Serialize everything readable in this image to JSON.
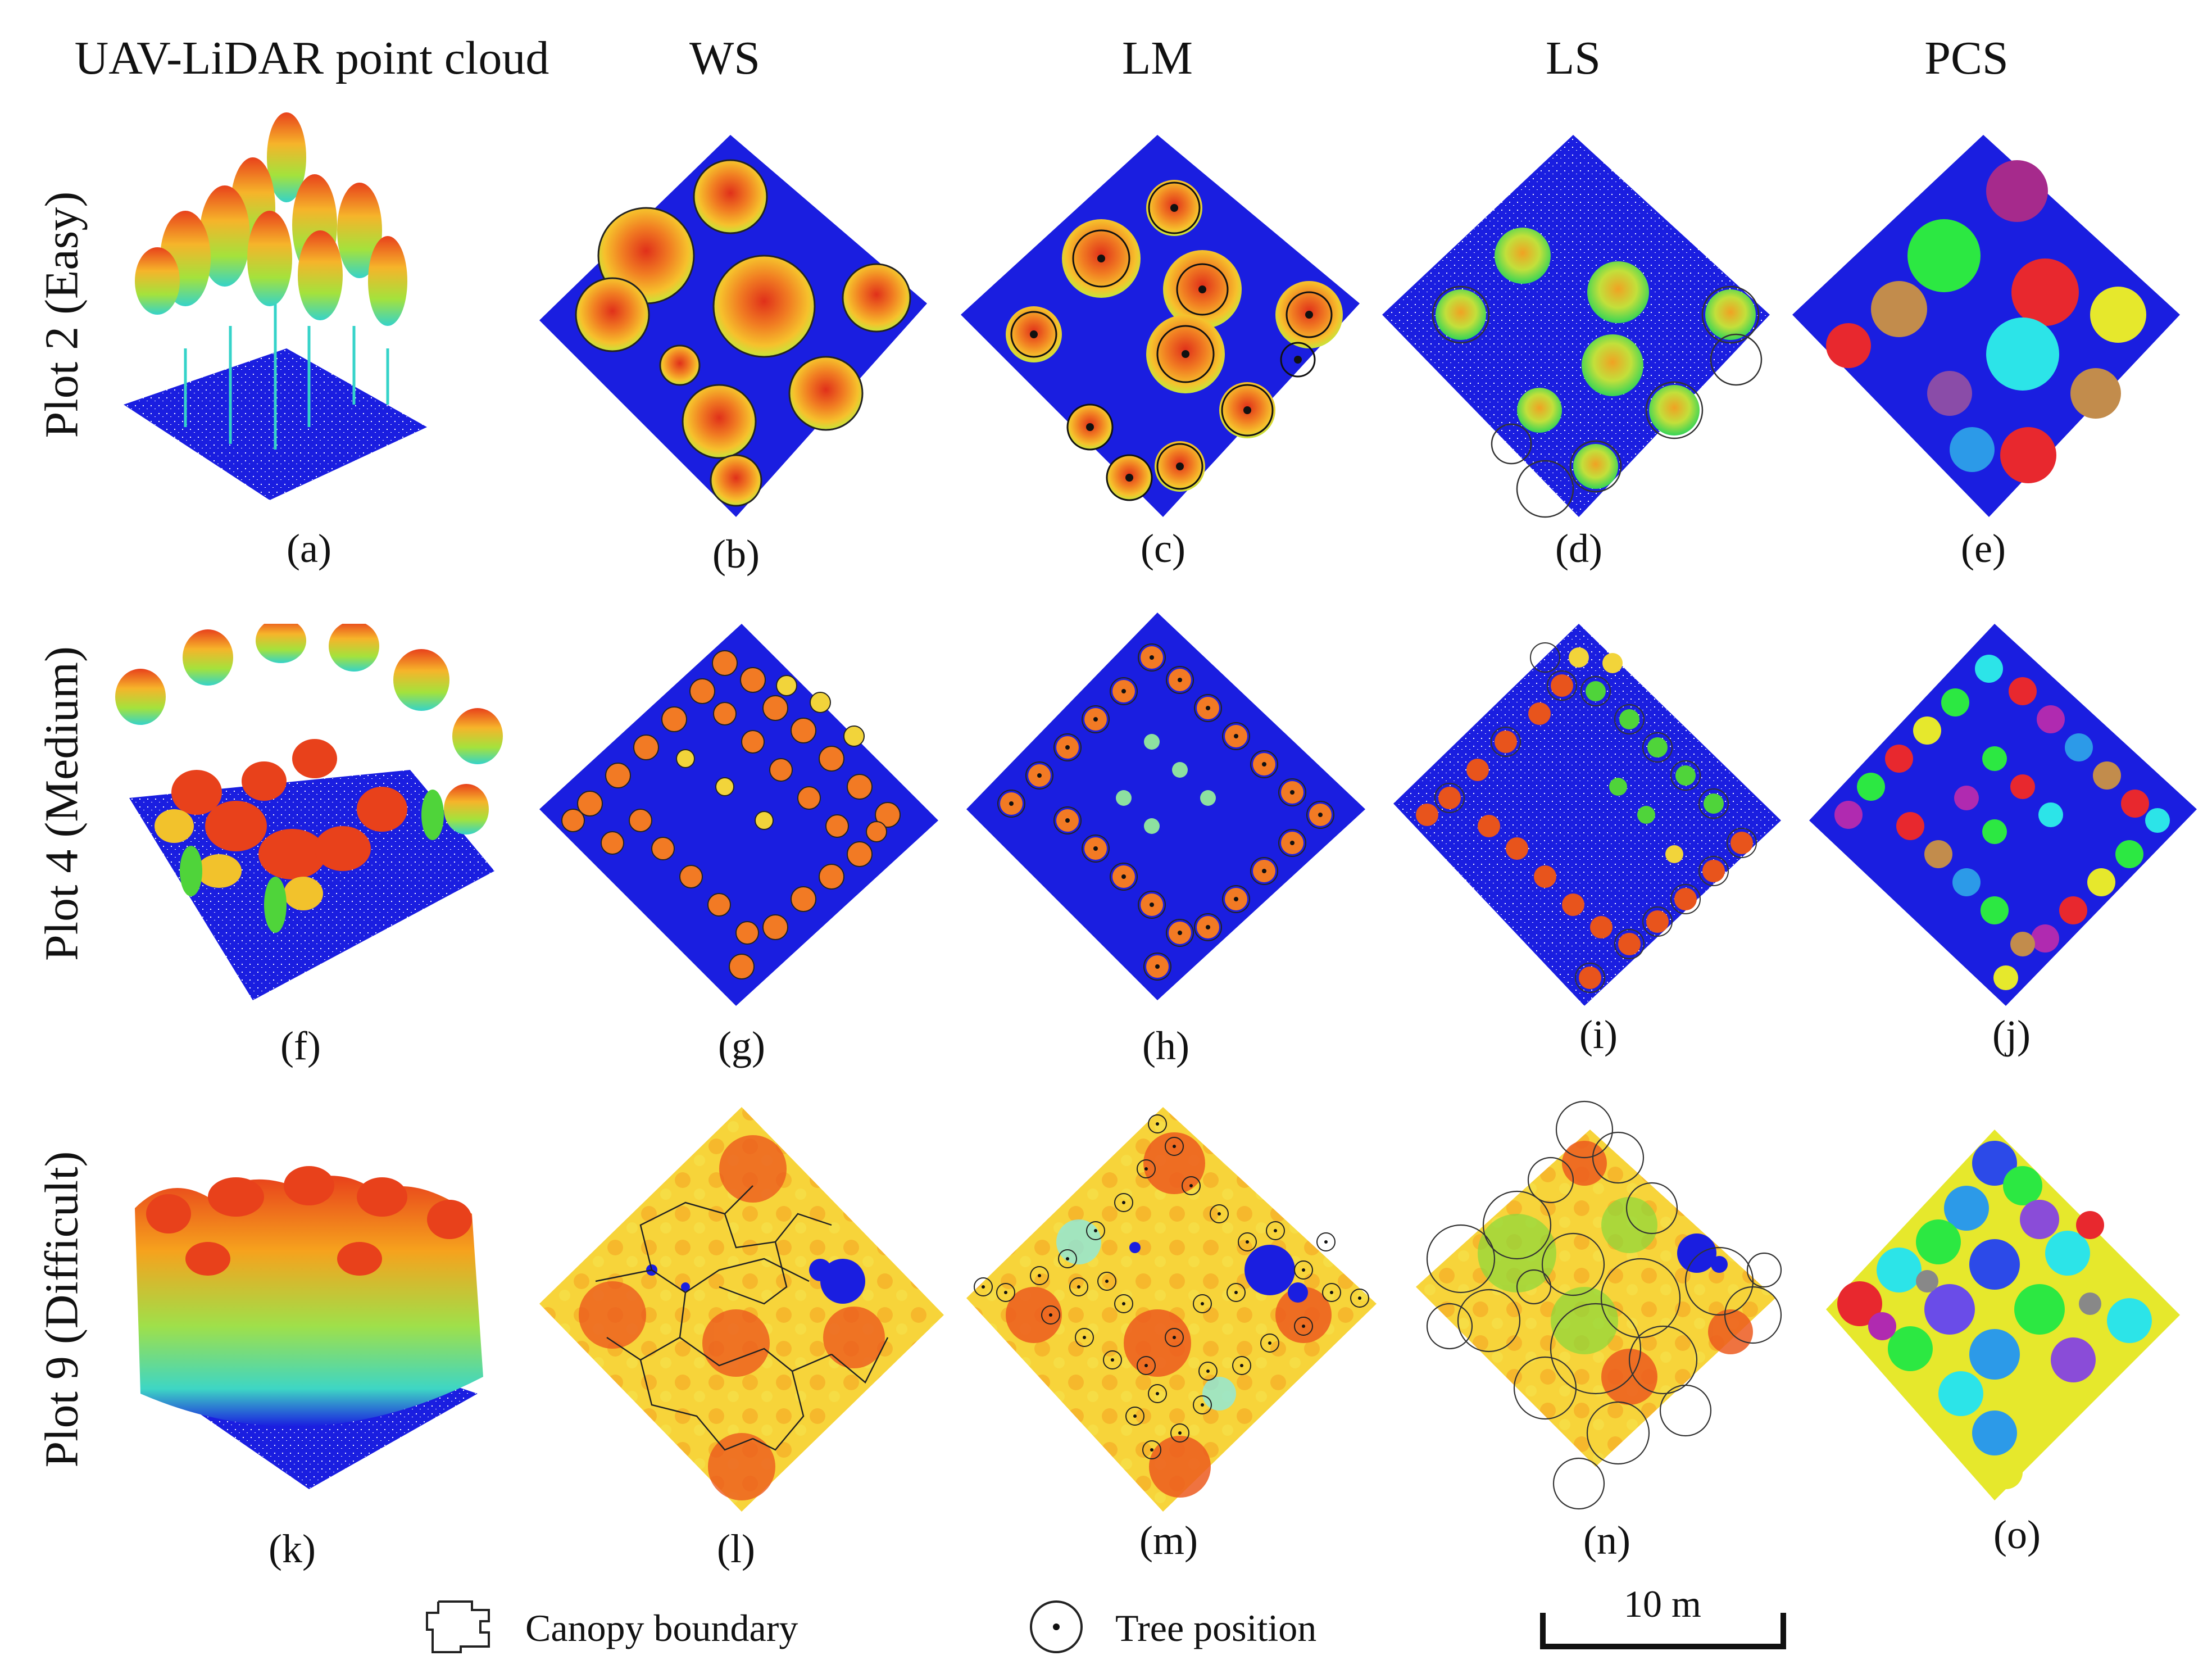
{
  "columns": [
    "UAV-LiDAR point cloud",
    "WS",
    "LM",
    "LS",
    "PCS"
  ],
  "rows": [
    "Plot 2 (Easy)",
    "Plot 4 (Medium)",
    "Plot 9 (Difficult)"
  ],
  "subfigures": [
    "(a)",
    "(b)",
    "(c)",
    "(d)",
    "(e)",
    "(f)",
    "(g)",
    "(h)",
    "(i)",
    "(j)",
    "(k)",
    "(l)",
    "(m)",
    "(n)",
    "(o)"
  ],
  "legend": {
    "canopy_boundary": "Canopy boundary",
    "tree_position": "Tree position",
    "scale": "10 m"
  },
  "colors": {
    "ground": "#1a1ee0",
    "high": "#e8411b",
    "mid": "#f6a21d",
    "low": "#f7e23a",
    "green": "#4fd43a"
  }
}
